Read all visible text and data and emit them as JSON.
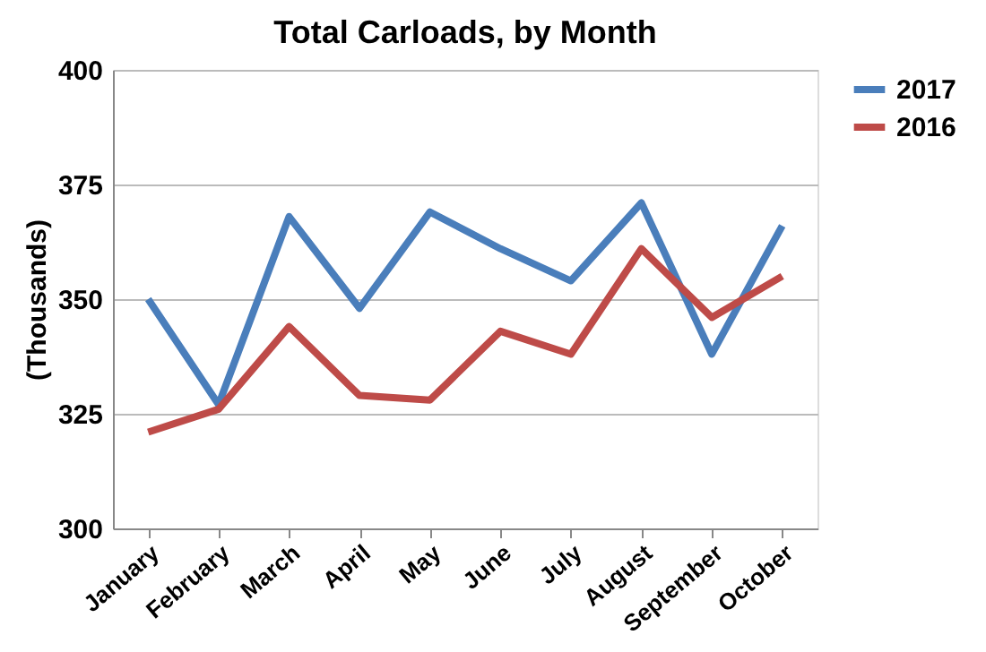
{
  "chart_data": {
    "type": "line",
    "title": "Total Carloads, by Month",
    "ylabel": "(Thousands)",
    "categories": [
      "January",
      "February",
      "March",
      "April",
      "May",
      "June",
      "July",
      "August",
      "September",
      "October"
    ],
    "series": [
      {
        "name": "2017",
        "color": "#4a7ebb",
        "values": [
          350,
          327,
          368,
          348,
          369,
          361,
          354,
          371,
          338,
          366
        ]
      },
      {
        "name": "2016",
        "color": "#be4b48",
        "values": [
          321,
          326,
          344,
          329,
          328,
          343,
          338,
          361,
          346,
          355
        ]
      }
    ],
    "ylim": [
      300,
      400
    ],
    "yticks": [
      300,
      325,
      350,
      375,
      400
    ],
    "grid": "y",
    "legend": "right",
    "marker": "none",
    "line_style": "solid"
  }
}
